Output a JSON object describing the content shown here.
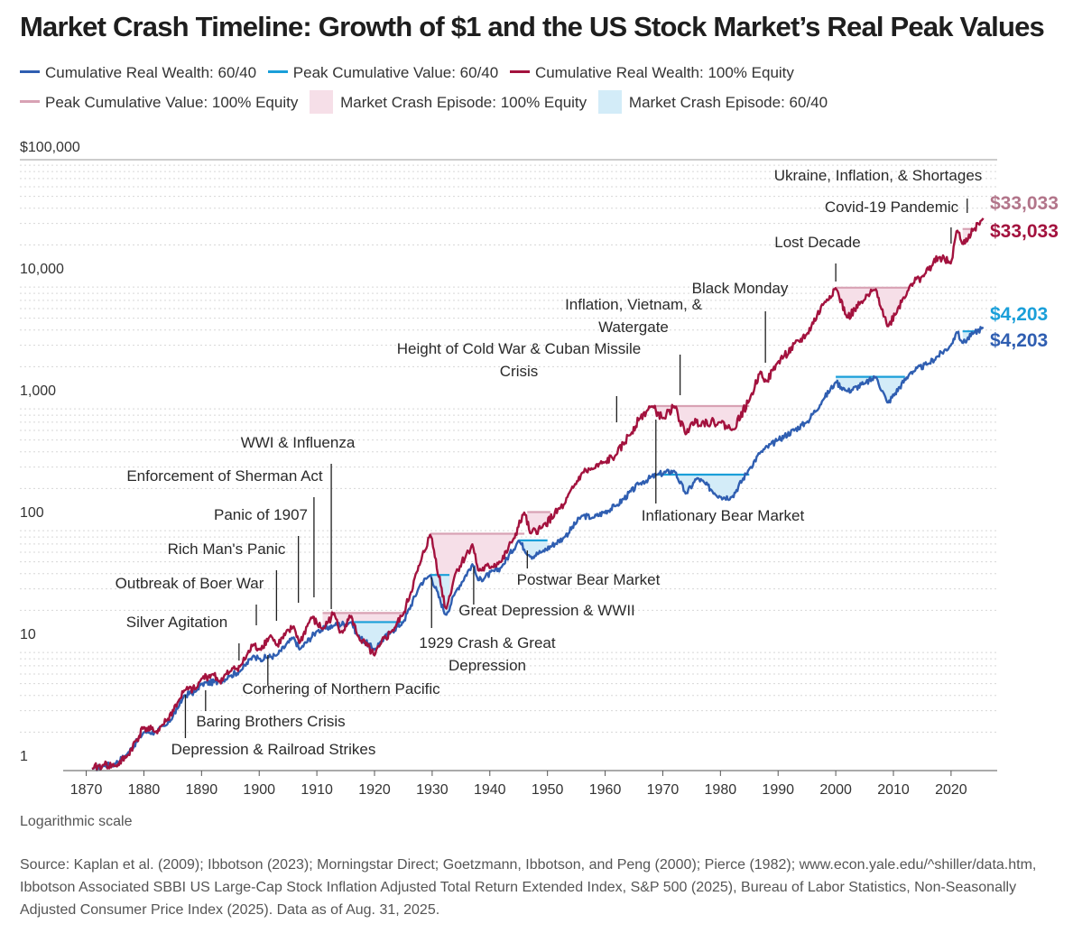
{
  "title": "Market Crash Timeline: Growth of $1 and the US Stock Market’s Real Peak Values",
  "legend": [
    {
      "label": "Cumulative Real Wealth: 60/40",
      "kind": "line",
      "color": "#2f5eb1"
    },
    {
      "label": "Peak Cumulative Value: 60/40",
      "kind": "line",
      "color": "#1a9fd9"
    },
    {
      "label": "Cumulative Real Wealth: 100% Equity",
      "kind": "line",
      "color": "#a3123e"
    },
    {
      "label": "Peak Cumulative Value: 100% Equity",
      "kind": "line",
      "color": "#d8a2b4"
    },
    {
      "label": "Market Crash Episode: 100% Equity",
      "kind": "box",
      "color": "#f6dfe8"
    },
    {
      "label": "Market Crash Episode: 60/40",
      "kind": "box",
      "color": "#d3ecf8"
    }
  ],
  "scale_note": "Logarithmic scale",
  "source": "Source: Kaplan et al. (2009); Ibbotson (2023); Morningstar Direct; Goetzmann, Ibbotson, and Peng (2000); Pierce (1982); www.econ.yale.edu/^shiller/data.htm, Ibbotson Associated SBBI US Large-Cap Stock Inflation Adjusted Total Return Extended Index, S&P 500 (2025), Bureau of Labor Statistics, Non-Seasonally Adjusted Consumer Price Index (2025). Data as of Aug. 31, 2025.",
  "chart_data": {
    "type": "line",
    "y_scale": "log",
    "ylim": [
      1,
      100000
    ],
    "xlim": [
      1866,
      2028
    ],
    "grid": true,
    "y_ticks": [
      {
        "value": 1,
        "label": "1"
      },
      {
        "value": 10,
        "label": "10"
      },
      {
        "value": 100,
        "label": "100"
      },
      {
        "value": 1000,
        "label": "1,000"
      },
      {
        "value": 10000,
        "label": "10,000"
      },
      {
        "value": 100000,
        "label": "$100,000"
      }
    ],
    "x_ticks": [
      1870,
      1880,
      1890,
      1900,
      1910,
      1920,
      1930,
      1940,
      1950,
      1960,
      1970,
      1980,
      1990,
      2000,
      2010,
      2020
    ],
    "series": [
      {
        "name": "Cumulative Real Wealth: 100% Equity",
        "color": "#a3123e",
        "x": [
          1871,
          1873,
          1875,
          1877,
          1880,
          1882,
          1884,
          1886,
          1887,
          1889,
          1890,
          1892,
          1893,
          1895,
          1897,
          1899,
          1900,
          1902,
          1903,
          1906,
          1907,
          1909,
          1911,
          1913,
          1914,
          1916,
          1917,
          1920,
          1921,
          1923,
          1925,
          1928,
          1929.7,
          1932.4,
          1934,
          1937,
          1938,
          1942,
          1944,
          1946,
          1947,
          1949,
          1953,
          1956,
          1958,
          1960,
          1962,
          1966,
          1968,
          1970,
          1972,
          1974,
          1975,
          1980,
          1982,
          1985,
          1987,
          1988,
          1990,
          1995,
          1998,
          2000,
          2002,
          2005,
          2007,
          2009,
          2013,
          2015,
          2018,
          2020,
          2021,
          2022,
          2024,
          2025.6
        ],
        "y": [
          1.0,
          1.08,
          1.05,
          1.25,
          2.2,
          2.0,
          2.5,
          3.6,
          4.4,
          4.5,
          5.5,
          6.0,
          5.2,
          6.3,
          7.2,
          10.5,
          9.5,
          12.5,
          10.3,
          14.8,
          10.7,
          17.5,
          14.0,
          19.0,
          13.0,
          18.0,
          12.5,
          8.5,
          10.5,
          13.5,
          18.5,
          50.0,
          85.0,
          20.0,
          40.0,
          70.0,
          42.0,
          50.0,
          75.0,
          128.0,
          85.0,
          95.0,
          150.0,
          270.0,
          290.0,
          330.0,
          380.0,
          750.0,
          950.0,
          750.0,
          950.0,
          550.0,
          700.0,
          700.0,
          600.0,
          1050.0,
          1850.0,
          1500.0,
          2200.0,
          3700.0,
          6700.0,
          8900.0,
          5000.0,
          7100.0,
          8700.0,
          4200.0,
          9500.0,
          11000.0,
          16000.0,
          14000.0,
          27000.0,
          20000.0,
          27000.0,
          33033.0
        ]
      },
      {
        "name": "Cumulative Real Wealth: 60/40",
        "color": "#2f5eb1",
        "x": [
          1871,
          1873,
          1875,
          1877,
          1880,
          1882,
          1884,
          1886,
          1887,
          1889,
          1890,
          1893,
          1895,
          1897,
          1899,
          1900,
          1903,
          1906,
          1907,
          1910,
          1913,
          1916,
          1917,
          1920,
          1921,
          1923,
          1925,
          1928,
          1929.7,
          1932.4,
          1934,
          1937,
          1938,
          1942,
          1945,
          1947,
          1949,
          1953,
          1956,
          1958,
          1962,
          1966,
          1969,
          1972,
          1974,
          1976,
          1980,
          1982,
          1985,
          1987,
          1990,
          1995,
          1998,
          2000,
          2002,
          2005,
          2007,
          2009,
          2013,
          2016,
          2020,
          2021,
          2022,
          2024,
          2025.6
        ],
        "y": [
          1.0,
          1.05,
          1.1,
          1.3,
          2.0,
          2.0,
          2.3,
          3.2,
          4.0,
          4.3,
          5.0,
          5.2,
          5.8,
          6.5,
          8.5,
          8.0,
          8.5,
          12.0,
          9.5,
          13.5,
          15.0,
          16.0,
          12.5,
          9.5,
          11.0,
          13.5,
          16.0,
          33.0,
          39.0,
          18.0,
          28.0,
          48.0,
          35.0,
          45.0,
          75.0,
          55.0,
          60.0,
          80.0,
          120.0,
          115.0,
          145.0,
          220.0,
          260.0,
          280.0,
          180.0,
          245.0,
          170.0,
          170.0,
          290.0,
          400.0,
          500.0,
          700.0,
          1100.0,
          1500.0,
          1250.0,
          1450.0,
          1650.0,
          1000.0,
          1800.0,
          2100.0,
          3000.0,
          3900.0,
          3100.0,
          3800.0,
          4203.0
        ]
      },
      {
        "name": "Peak Cumulative Value: 100% Equity",
        "color": "#d8a2b4"
      },
      {
        "name": "Peak Cumulative Value: 60/40",
        "color": "#1a9fd9"
      }
    ],
    "episodes_equity": [
      [
        1911,
        1925,
        19.0
      ],
      [
        1929.7,
        1946,
        85.0
      ],
      [
        1946.5,
        1950.5,
        128.0
      ],
      [
        1968,
        1985,
        950.0
      ],
      [
        2000,
        2013,
        8900.0
      ],
      [
        2022,
        2024,
        27000.0
      ]
    ],
    "episodes_6040": [
      [
        1916,
        1925,
        16.0
      ],
      [
        1929.7,
        1933,
        39.0
      ],
      [
        1945,
        1950,
        75.0
      ],
      [
        1969,
        1985,
        260.0
      ],
      [
        2000,
        2012,
        1650.0
      ],
      [
        2022,
        2025,
        3900.0
      ]
    ],
    "end_labels": [
      {
        "text": "$33,033",
        "value": 33033,
        "color": "#b2758a"
      },
      {
        "text": "$33,033",
        "value": 33033,
        "color": "#a3123e"
      },
      {
        "text": "$4,203",
        "value": 4203,
        "color": "#1a9fd9"
      },
      {
        "text": "$4,203",
        "value": 4203,
        "color": "#2f5eb1"
      }
    ],
    "annotations": [
      {
        "text": [
          "Ukraine, Inflation, & Shortages"
        ],
        "year": 2022.8
      },
      {
        "text": [
          "Covid-19 Pandemic"
        ],
        "year": 2020
      },
      {
        "text": [
          "Lost Decade"
        ],
        "year": 2000
      },
      {
        "text": [
          "Black Monday"
        ],
        "year": 1987.8
      },
      {
        "text": [
          "Inflation, Vietnam, &",
          "Watergate"
        ],
        "year": 1973
      },
      {
        "text": [
          "Height of Cold War & Cuban Missile",
          "Crisis"
        ],
        "year": 1962
      },
      {
        "text": [
          "Inflationary Bear Market"
        ],
        "year": 1968.8
      },
      {
        "text": [
          "WWI & Influenza"
        ],
        "year": 1912.5
      },
      {
        "text": [
          "Enforcement of Sherman Act"
        ],
        "year": 1909.5
      },
      {
        "text": [
          "Panic of 1907"
        ],
        "year": 1906.8
      },
      {
        "text": [
          "Rich Man's Panic"
        ],
        "year": 1903
      },
      {
        "text": [
          "Outbreak of Boer War"
        ],
        "year": 1899.5
      },
      {
        "text": [
          "Silver Agitation"
        ],
        "year": 1896.5
      },
      {
        "text": [
          "Postwar Bear Market"
        ],
        "year": 1946.5
      },
      {
        "text": [
          "Great Depression & WWII"
        ],
        "year": 1937.2
      },
      {
        "text": [
          "1929 Crash & Great",
          "Depression"
        ],
        "year": 1929.9
      },
      {
        "text": [
          "Cornering of Northern Pacific"
        ],
        "year": 1901.5
      },
      {
        "text": [
          "Baring Brothers Crisis"
        ],
        "year": 1890.7
      },
      {
        "text": [
          "Depression & Railroad Strikes"
        ],
        "year": 1887.2
      }
    ]
  }
}
